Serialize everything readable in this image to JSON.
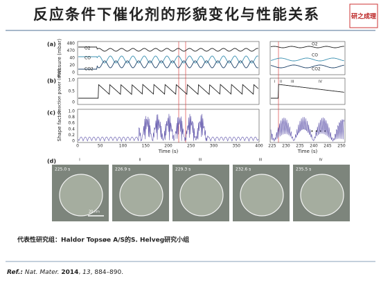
{
  "title": "反应条件下催化剂的形貌变化与性能关系",
  "logo": "研之成理",
  "figure": {
    "a": {
      "label": "(a)",
      "yticks": [
        "480",
        "470",
        "40",
        "20",
        "0"
      ],
      "ylabel": "Pressure (mbar)",
      "series": [
        "O2",
        "CO",
        "CO2"
      ],
      "inset_series": [
        "O2",
        "CO",
        "CO2"
      ]
    },
    "b": {
      "label": "(b)",
      "yticks": [
        "1.0",
        "0.5",
        "0"
      ],
      "ylabel": "Reaction power (mW)",
      "inset_labels": [
        "I",
        "II",
        "III",
        "IV"
      ]
    },
    "c": {
      "label": "(c)",
      "yticks": [
        "1.0",
        "0.8",
        "0.6",
        "0.4",
        "0.2",
        "0"
      ],
      "ylabel": "Shape factor",
      "xticks": [
        "0",
        "50",
        "100",
        "150",
        "200",
        "250",
        "300",
        "350",
        "400"
      ],
      "xlabel": "Time (s)",
      "inset_xticks": [
        "225",
        "230",
        "235",
        "240",
        "245",
        "250"
      ],
      "inset_xlabel": "Time (s)"
    },
    "d": {
      "label": "(d)",
      "stages": [
        "I",
        "II",
        "III",
        "III",
        "IV"
      ],
      "times": [
        "225.0 s",
        "226.9 s",
        "229.3 s",
        "232.6 s",
        "235.5 s"
      ],
      "scale": "20 nm"
    }
  },
  "caption": "代表性研究组：Haldor Topsøe A/S的S. Helveg研究小组",
  "ref": {
    "prefix": "Ref.:",
    "journal": "Nat. Mater.",
    "year": "2014",
    "volume": "13",
    "pages": ", 884–890."
  }
}
